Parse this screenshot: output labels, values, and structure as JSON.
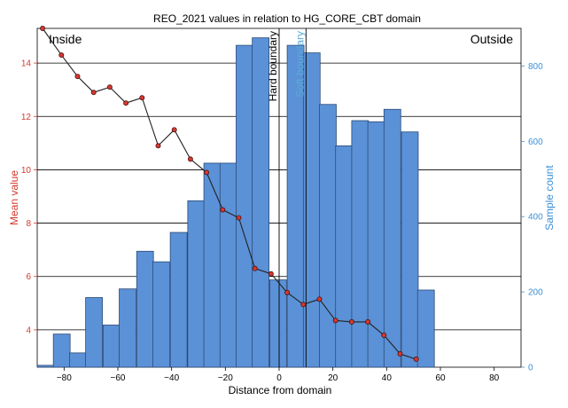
{
  "chart_data": {
    "type": "bar+line",
    "title": "REO_2021 values in relation to HG_CORE_CBT domain",
    "xlabel": "Distance from domain",
    "ylabel_left": "Mean value",
    "ylabel_right": "Sample count",
    "xlim": [
      -90,
      90
    ],
    "ylim_left": [
      2.6,
      15.3
    ],
    "ylim_right": [
      0,
      900
    ],
    "x_ticks": [
      -80,
      -60,
      -40,
      -20,
      0,
      20,
      40,
      60,
      80
    ],
    "y_left_ticks": [
      4,
      6,
      8,
      10,
      12,
      14
    ],
    "y_right_ticks": [
      0,
      200,
      400,
      600,
      800
    ],
    "annotations": {
      "inside": "Inside",
      "outside": "Outside"
    },
    "boundaries": [
      {
        "label": "Hard boundary",
        "x": 0,
        "color": "#000000"
      },
      {
        "label": "Soft boundary",
        "x": 10,
        "color": "#5aaad8"
      }
    ],
    "histogram": {
      "name": "Sample count",
      "bin_width": 6.25,
      "bins": [
        {
          "x0": -90,
          "count": 5
        },
        {
          "x0": -84,
          "count": 88
        },
        {
          "x0": -78,
          "count": 38
        },
        {
          "x0": -72,
          "count": 185
        },
        {
          "x0": -65.5,
          "count": 112
        },
        {
          "x0": -59.5,
          "count": 208
        },
        {
          "x0": -53,
          "count": 308
        },
        {
          "x0": -47,
          "count": 280
        },
        {
          "x0": -40.5,
          "count": 358
        },
        {
          "x0": -34,
          "count": 442
        },
        {
          "x0": -28,
          "count": 542
        },
        {
          "x0": -22,
          "count": 542
        },
        {
          "x0": -16,
          "count": 855
        },
        {
          "x0": -10,
          "count": 875
        },
        {
          "x0": -3.5,
          "count": 232
        },
        {
          "x0": 3,
          "count": 855
        },
        {
          "x0": 9,
          "count": 835
        },
        {
          "x0": 15,
          "count": 698
        },
        {
          "x0": 21,
          "count": 588
        },
        {
          "x0": 27,
          "count": 655
        },
        {
          "x0": 33,
          "count": 652
        },
        {
          "x0": 39,
          "count": 685
        },
        {
          "x0": 45.5,
          "count": 625
        },
        {
          "x0": 51.5,
          "count": 205
        }
      ]
    },
    "series": [
      {
        "name": "Mean value",
        "x": [
          -88,
          -81,
          -75,
          -69,
          -63,
          -57,
          -51,
          -45,
          -39,
          -33,
          -27,
          -21,
          -15,
          -9,
          -3,
          3,
          9,
          15,
          21,
          27,
          33,
          39,
          45,
          51
        ],
        "values": [
          15.3,
          14.3,
          13.5,
          12.9,
          13.1,
          12.5,
          12.7,
          10.9,
          11.5,
          10.4,
          9.9,
          8.5,
          8.2,
          6.3,
          6.1,
          5.4,
          4.95,
          5.15,
          4.35,
          4.3,
          4.3,
          3.8,
          3.1,
          2.9
        ]
      }
    ]
  },
  "colors": {
    "bar_fill": "#5b91d6",
    "bar_edge": "#2b4a78",
    "line": "#222222",
    "marker_fill": "#d6372f",
    "left_axis": "#d43a2f",
    "right_axis": "#3c8fd6"
  }
}
